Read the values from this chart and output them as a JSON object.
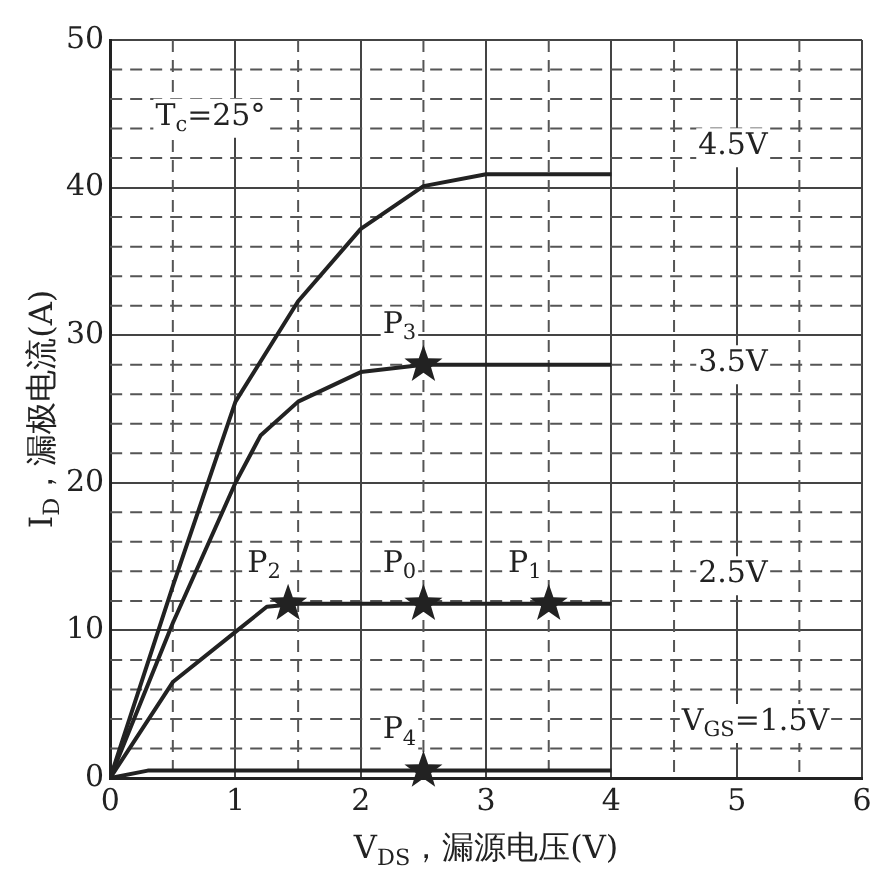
{
  "chart_data": {
    "type": "line",
    "xlabel": "V$_{DS}$，漏源电压(V)",
    "ylabel": "I$_{D}$，漏极电流(A)",
    "xlim": [
      0,
      6
    ],
    "xticks": [
      0,
      1,
      2,
      3,
      4,
      5,
      6
    ],
    "ylim": [
      0,
      50
    ],
    "yticks": [
      0,
      10,
      20,
      30,
      40,
      50
    ],
    "grid": true,
    "legend": false,
    "line_style": "solid",
    "marker": "none",
    "series": [
      {
        "color": "#222222",
        "x": [
          0,
          0.5,
          1,
          1.5,
          2,
          2.5,
          3,
          4
        ],
        "values": [
          0,
          13,
          25.5,
          32.3,
          37.2,
          40.1,
          40.9,
          40.9
        ]
      },
      {
        "color": "#222222",
        "x": [
          0,
          0.5,
          1,
          1.2,
          1.5,
          2,
          2.5,
          4
        ],
        "values": [
          0,
          10.5,
          20,
          23.2,
          25.5,
          27.5,
          28,
          28
        ]
      },
      {
        "color": "#222222",
        "x": [
          0,
          0.5,
          1,
          1.25,
          1.5,
          4
        ],
        "values": [
          0,
          6.5,
          9.9,
          11.6,
          11.8,
          11.8
        ]
      },
      {
        "color": "#222222",
        "x": [
          0,
          0.3,
          4
        ],
        "values": [
          0,
          0.5,
          0.5
        ]
      },
      {
        "type": "scatter",
        "marker": "star",
        "color": "#222222",
        "x": [
          2.5,
          1.42,
          2.5,
          3.5,
          2.5
        ],
        "values": [
          28,
          11.8,
          11.8,
          11.8,
          0.5
        ]
      }
    ],
    "annotations": [
      "T$_{c}$=25°",
      "4.5V",
      "3.5V",
      "2.5V",
      "V$_{GS}$=1.5V",
      {
        "text": "P$_{3}$",
        "x": 2.5,
        "y": 28
      },
      {
        "text": "P$_{2}$",
        "x": 1.42,
        "y": 11.8
      },
      {
        "text": "P$_{0}$",
        "x": 2.5,
        "y": 11.8
      },
      {
        "text": "P$_{1}$",
        "x": 3.5,
        "y": 11.8
      },
      {
        "text": "P$_{4}$",
        "x": 2.5,
        "y": 0.5
      }
    ]
  }
}
